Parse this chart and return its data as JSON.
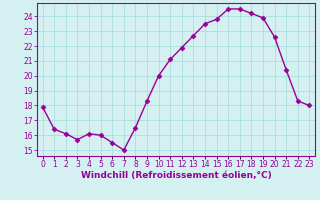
{
  "x_values": [
    0,
    1,
    2,
    3,
    4,
    5,
    6,
    7,
    8,
    9,
    10,
    11,
    12,
    13,
    14,
    15,
    16,
    17,
    18,
    19,
    20,
    21,
    22,
    23
  ],
  "y_values": [
    17.9,
    16.4,
    16.1,
    15.7,
    16.1,
    16.0,
    15.5,
    15.0,
    16.5,
    18.3,
    20.0,
    21.1,
    21.9,
    22.7,
    23.5,
    23.8,
    24.5,
    24.5,
    24.2,
    23.9,
    22.6,
    20.4,
    18.3,
    18.0
  ],
  "line_color": "#990099",
  "marker": "D",
  "marker_size": 2.5,
  "line_width": 1.0,
  "xlabel": "Windchill (Refroidissement éolien,°C)",
  "xlabel_fontsize": 6.5,
  "xlabel_color": "#990099",
  "ylabel_ticks": [
    15,
    16,
    17,
    18,
    19,
    20,
    21,
    22,
    23,
    24
  ],
  "xlim": [
    -0.5,
    23.5
  ],
  "ylim": [
    14.6,
    24.9
  ],
  "background_color": "#d4f0f0",
  "grid_color": "#aadddd",
  "tick_color": "#990099",
  "tick_fontsize": 5.5,
  "xtick_labels": [
    "0",
    "1",
    "2",
    "3",
    "4",
    "5",
    "6",
    "7",
    "8",
    "9",
    "10",
    "11",
    "12",
    "13",
    "14",
    "15",
    "16",
    "17",
    "18",
    "19",
    "20",
    "21",
    "22",
    "23"
  ]
}
